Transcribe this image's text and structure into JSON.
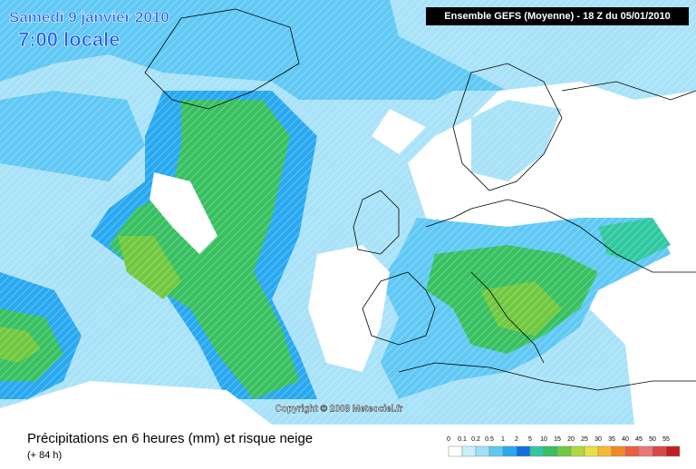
{
  "header": {
    "date": "Samedi 9 janvier 2010",
    "time": "7:00 locale",
    "model": "Ensemble GEFS (Moyenne)  - 18 Z du 05/01/2010"
  },
  "copyright": "Copyright © 2008 Meteociel.fr",
  "footer": {
    "title": "Précipitations en 6 heures (mm) et risque neige",
    "lead": "(+ 84 h)"
  },
  "legend": {
    "labels": [
      "0",
      "0.1",
      "0.2",
      "0.5",
      "1",
      "2",
      "5",
      "10",
      "15",
      "20",
      "25",
      "30",
      "35",
      "40",
      "45",
      "50",
      "55"
    ],
    "colors": [
      "#ffffff",
      "#c8f0fc",
      "#a0e0f8",
      "#60c8f4",
      "#28a8f0",
      "#1070e0",
      "#30c8a0",
      "#38c060",
      "#70c840",
      "#b0d840",
      "#e8e040",
      "#f8b830",
      "#f08828",
      "#e86040",
      "#e87878",
      "#d84848",
      "#c02020"
    ]
  }
}
